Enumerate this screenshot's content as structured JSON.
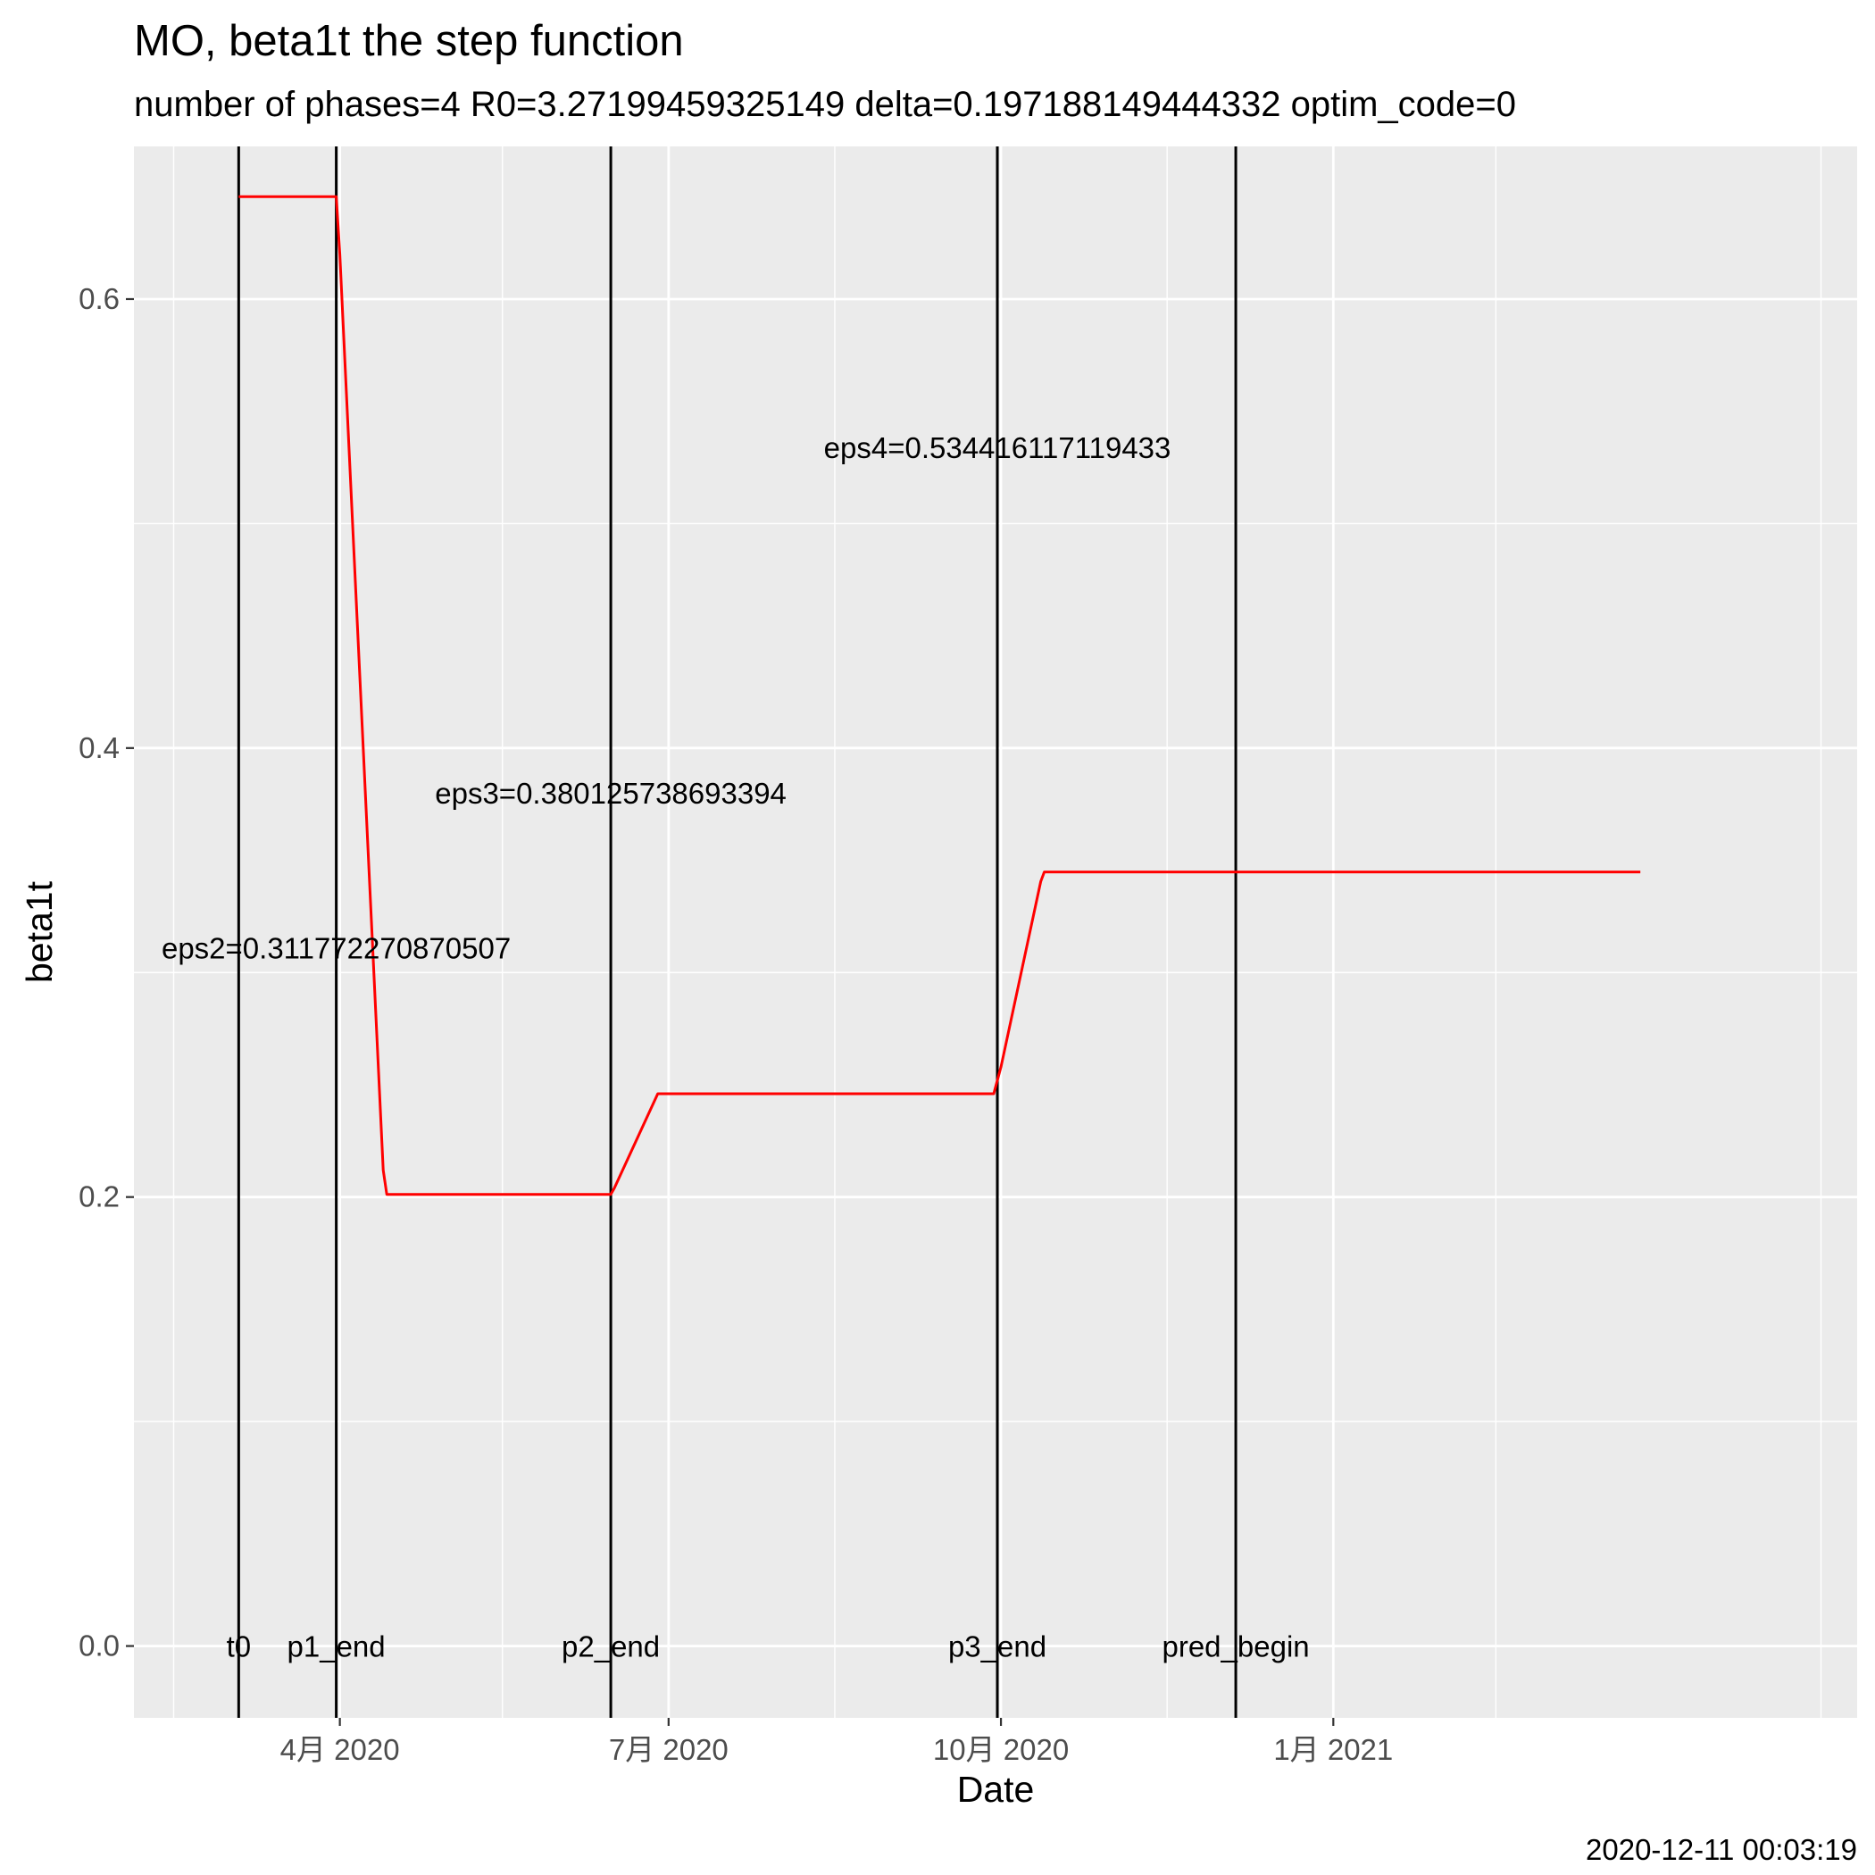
{
  "chart_data": {
    "type": "line",
    "title": "MO, beta1t the step function",
    "subtitle": "number of phases=4   R0=3.27199459325149   delta=0.197188149444332   optim_code=0",
    "xlabel": "Date",
    "ylabel": "beta1t",
    "caption": "2020-12-11 00:03:19",
    "xlim": [
      "2020-02-04",
      "2021-05-26"
    ],
    "ylim": [
      -0.032,
      0.668
    ],
    "grid": true,
    "legend": "none",
    "x_ticks": [
      {
        "date": "2020-04-01",
        "label": "4月 2020"
      },
      {
        "date": "2020-07-01",
        "label": "7月 2020"
      },
      {
        "date": "2020-10-01",
        "label": "10月 2020"
      },
      {
        "date": "2021-01-01",
        "label": "1月 2021"
      }
    ],
    "x_minor_ticks": [
      "2020-02-15",
      "2020-05-16",
      "2020-08-16",
      "2020-11-16",
      "2021-02-15",
      "2021-05-16"
    ],
    "y_ticks": [
      {
        "value": 0.0,
        "label": "0.0"
      },
      {
        "value": 0.2,
        "label": "0.2"
      },
      {
        "value": 0.4,
        "label": "0.4"
      },
      {
        "value": 0.6,
        "label": "0.6"
      }
    ],
    "y_minor_ticks": [
      0.1,
      0.3,
      0.5
    ],
    "series": [
      {
        "color": "#ff0000",
        "points": [
          {
            "x": "2020-03-04",
            "y": 0.6456
          },
          {
            "x": "2020-03-31",
            "y": 0.6456
          },
          {
            "x": "2020-04-01",
            "y": 0.62
          },
          {
            "x": "2020-04-13",
            "y": 0.212
          },
          {
            "x": "2020-04-14",
            "y": 0.2012
          },
          {
            "x": "2020-06-15",
            "y": 0.2012
          },
          {
            "x": "2020-06-16",
            "y": 0.204
          },
          {
            "x": "2020-06-28",
            "y": 0.246
          },
          {
            "x": "2020-09-29",
            "y": 0.246
          },
          {
            "x": "2020-10-01",
            "y": 0.258
          },
          {
            "x": "2020-10-12",
            "y": 0.3405
          },
          {
            "x": "2020-10-13",
            "y": 0.3448
          },
          {
            "x": "2021-03-27",
            "y": 0.3448
          }
        ]
      }
    ],
    "vlines": [
      {
        "date": "2020-03-04",
        "label": "t0"
      },
      {
        "date": "2020-03-31",
        "label": "p1_end"
      },
      {
        "date": "2020-06-15",
        "label": "p2_end"
      },
      {
        "date": "2020-09-30",
        "label": "p3_end"
      },
      {
        "date": "2020-12-05",
        "label": "pred_begin"
      }
    ],
    "annotations": [
      {
        "text": "eps2=0.311772270870507",
        "x": "2020-03-31",
        "y": 0.311
      },
      {
        "text": "eps3=0.380125738693394",
        "x": "2020-06-15",
        "y": 0.38
      },
      {
        "text": "eps4=0.534416117119433",
        "x": "2020-09-30",
        "y": 0.534
      }
    ],
    "colors": {
      "panel": "#ebebeb",
      "grid": "#ffffff",
      "line": "#ff0000",
      "vline": "#000000"
    }
  }
}
